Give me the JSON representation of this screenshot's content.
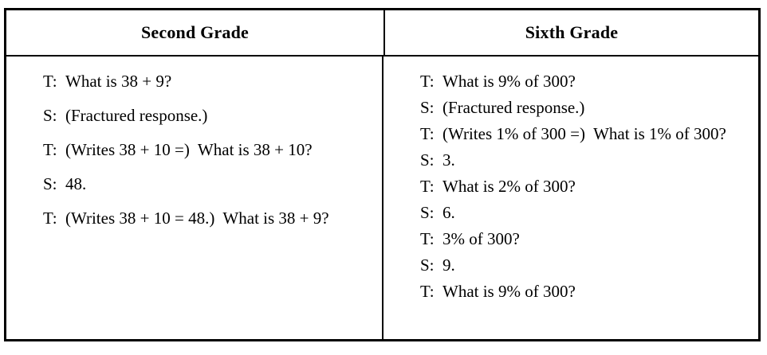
{
  "colors": {
    "text": "#000000",
    "border": "#000000",
    "background": "#ffffff"
  },
  "table": {
    "columns": [
      {
        "header": "Second Grade",
        "turns": [
          {
            "speaker": "T:",
            "text": "What is 38 + 9?"
          },
          {
            "speaker": "S:",
            "text": "(Fractured response.)"
          },
          {
            "speaker": "T:",
            "text": "(Writes 38 + 10 =)  What is 38 + 10?"
          },
          {
            "speaker": "S:",
            "text": "48."
          },
          {
            "speaker": "T:",
            "text": "(Writes 38 + 10 = 48.)  What is 38 + 9?"
          }
        ]
      },
      {
        "header": "Sixth Grade",
        "turns": [
          {
            "speaker": "T:",
            "text": "What is 9% of 300?"
          },
          {
            "speaker": "S:",
            "text": "(Fractured response.)"
          },
          {
            "speaker": "T:",
            "text": "(Writes 1% of 300 =)  What is 1% of 300?"
          },
          {
            "speaker": "S:",
            "text": "3."
          },
          {
            "speaker": "T:",
            "text": "What is 2% of 300?"
          },
          {
            "speaker": "S:",
            "text": "6."
          },
          {
            "speaker": "T:",
            "text": "3% of 300?"
          },
          {
            "speaker": "S:",
            "text": "9."
          },
          {
            "speaker": "T:",
            "text": "What is 9% of 300?"
          }
        ]
      }
    ]
  }
}
